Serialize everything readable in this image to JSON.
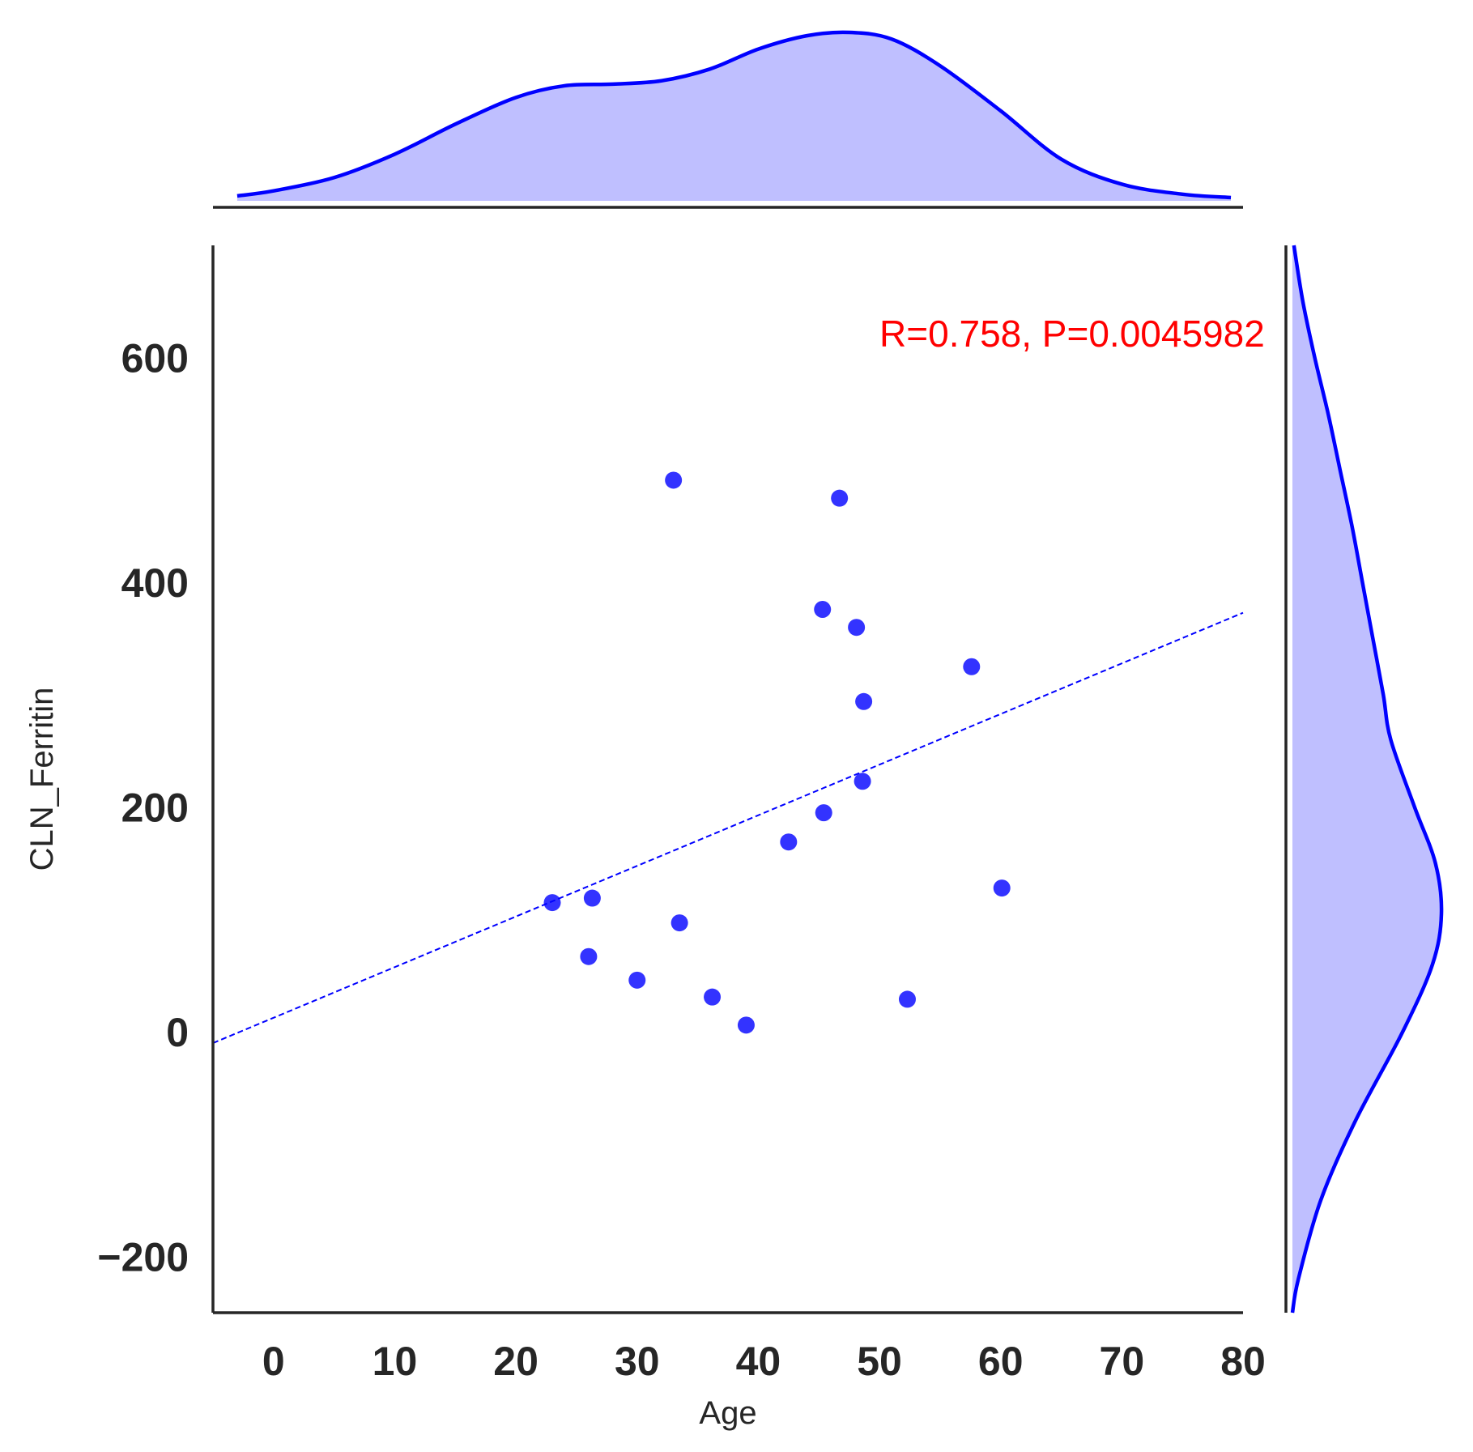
{
  "chart_data": {
    "type": "scatter",
    "xlabel": "Age",
    "ylabel": "CLN_Ferritin",
    "xlim": [
      -5,
      80
    ],
    "ylim": [
      -250,
      700
    ],
    "xticks": [
      0,
      10,
      20,
      30,
      40,
      50,
      60,
      70,
      80
    ],
    "xtick_labels": [
      "0",
      "10",
      "20",
      "30",
      "40",
      "50",
      "60",
      "70",
      "80"
    ],
    "yticks": [
      -200,
      0,
      200,
      400,
      600
    ],
    "ytick_labels": [
      "−200",
      "0",
      "200",
      "400",
      "600"
    ],
    "grid": false,
    "annotation": {
      "text": "R=0.758, P=0.0045982",
      "x": 50,
      "y": 610,
      "color": "#ff0000"
    },
    "points": {
      "x": [
        23,
        26,
        26.3,
        30,
        33,
        33.5,
        36.2,
        39,
        42.5,
        45.3,
        45.4,
        46.7,
        48.1,
        48.6,
        48.7,
        52.3,
        57.6,
        60.1
      ],
      "y": [
        115,
        67,
        119,
        46,
        491,
        97,
        31,
        6,
        169,
        376,
        195,
        475,
        360,
        223,
        294,
        29,
        325,
        128
      ],
      "color": "#0000ff"
    },
    "regression": {
      "x": [
        -5,
        80
      ],
      "y": [
        -10,
        373
      ],
      "color": "#0000ff",
      "style": "dashed"
    },
    "marginal_x": {
      "type": "kde",
      "color": "#0000ff",
      "fill": "#bfbfff",
      "x": [
        -3,
        0,
        5,
        10,
        15,
        20,
        24,
        28,
        32,
        36,
        40,
        44,
        47.5,
        51,
        55,
        60,
        65,
        70,
        75,
        79
      ],
      "density": [
        0.02,
        0.05,
        0.13,
        0.27,
        0.45,
        0.61,
        0.68,
        0.69,
        0.71,
        0.78,
        0.9,
        0.98,
        1.0,
        0.96,
        0.8,
        0.53,
        0.24,
        0.09,
        0.03,
        0.01
      ]
    },
    "marginal_y": {
      "type": "kde",
      "color": "#0000ff",
      "fill": "#bfbfff",
      "y": [
        -250,
        -220,
        -150,
        -80,
        0,
        60,
        105,
        150,
        200,
        260,
        300,
        350,
        400,
        450,
        500,
        550,
        600,
        650,
        700
      ],
      "density": [
        0.0,
        0.04,
        0.19,
        0.42,
        0.74,
        0.94,
        1.0,
        0.96,
        0.82,
        0.66,
        0.61,
        0.54,
        0.47,
        0.4,
        0.32,
        0.24,
        0.15,
        0.07,
        0.01
      ]
    }
  }
}
